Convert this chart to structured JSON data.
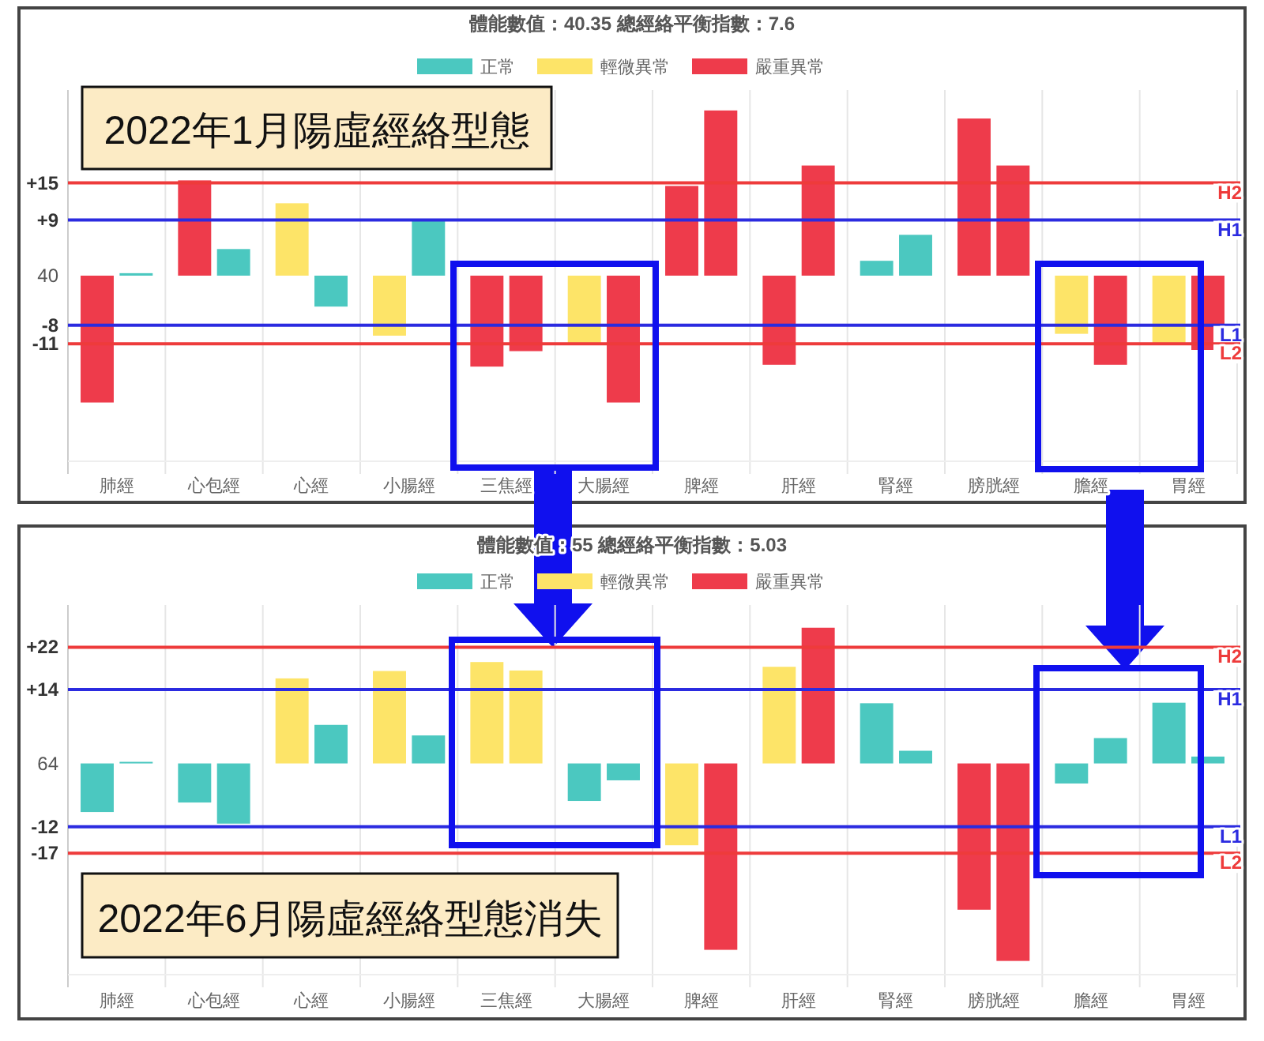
{
  "chart_data": [
    {
      "type": "bar",
      "title": "體能數值：40.35 總經絡平衡指數：7.6",
      "categories": [
        "肺經",
        "心包經",
        "心經",
        "小腸經",
        "三焦經",
        "大腸經",
        "脾經",
        "肝經",
        "腎經",
        "膀胱經",
        "膽經",
        "胃經"
      ],
      "series": [
        {
          "name": "正常",
          "color": "#4bc8c0",
          "values": [
            null,
            null,
            null,
            null,
            null,
            null,
            null,
            null,
            2.4,
            null,
            null,
            null
          ]
        },
        {
          "name": "輕微異常",
          "color": "#fde468",
          "values": [
            null,
            null,
            11.7,
            -9.7,
            null,
            -10.9,
            null,
            null,
            null,
            null,
            -9.4,
            -10.9
          ]
        },
        {
          "name": "嚴重異常",
          "color": "#ee3b4b",
          "values": [
            -20.5,
            15.4,
            null,
            null,
            -14.7,
            null,
            14.5,
            -14.4,
            null,
            25.4,
            null,
            null
          ]
        },
        {
          "color": "#4bc8c0",
          "values": [
            0.4,
            4.3,
            -5.0,
            9.1,
            null,
            null,
            null,
            null,
            6.6,
            null,
            null,
            null
          ]
        },
        {
          "color": "#ee3b4b",
          "values": [
            null,
            null,
            null,
            null,
            -12.2,
            -20.5,
            26.7,
            17.8,
            null,
            17.8,
            -14.4,
            -12.0
          ]
        }
      ],
      "ylim": [
        -30,
        30
      ],
      "yticks": [
        {
          "value": 15,
          "label": "+15"
        },
        {
          "value": 9,
          "label": "+9"
        },
        -8,
        -11
      ],
      "ref_lines": [
        {
          "axis": "y",
          "value": 15,
          "label": "H2",
          "color": "#ee3b3b"
        },
        {
          "axis": "y",
          "value": 9,
          "label": "H1",
          "color": "#2b2be0"
        },
        {
          "axis": "y",
          "value": -8,
          "label": "L1",
          "color": "#2b2be0"
        },
        {
          "axis": "y",
          "value": -11,
          "label": "L2",
          "color": "#ee3b3b"
        }
      ],
      "annotations": [
        "2022年1月陽虛經絡型態",
        "40"
      ],
      "grid": true,
      "legend": "top"
    },
    {
      "type": "bar",
      "title": "體能數值：55 總經絡平衡指數：5.03",
      "categories": [
        "肺經",
        "心包經",
        "心經",
        "小腸經",
        "三焦經",
        "大腸經",
        "脾經",
        "肝經",
        "腎經",
        "膀胱經",
        "膽經",
        "胃經"
      ],
      "series": [
        {
          "name": "正常",
          "color": "#4bc8c0",
          "values": [
            -9.2,
            -7.4,
            null,
            null,
            null,
            -7.1,
            null,
            null,
            11.4,
            null,
            -3.8,
            11.5
          ]
        },
        {
          "name": "輕微異常",
          "color": "#fde468",
          "values": [
            null,
            null,
            16.1,
            17.5,
            19.2,
            null,
            -15.5,
            18.3,
            null,
            null,
            null,
            null
          ]
        },
        {
          "name": "嚴重異常",
          "color": "#ee3b4b",
          "values": [
            null,
            null,
            null,
            null,
            null,
            null,
            null,
            null,
            null,
            -27.7,
            null,
            null
          ]
        },
        {
          "color": "#4bc8c0",
          "values": [
            0.3,
            -11.4,
            7.3,
            5.3,
            null,
            -3.2,
            null,
            null,
            2.4,
            null,
            4.8,
            1.3
          ]
        },
        {
          "color": "#fde468",
          "values": [
            null,
            null,
            null,
            null,
            17.6,
            null,
            null,
            null,
            null,
            null,
            null,
            null
          ]
        },
        {
          "color": "#ee3b4b",
          "values": [
            null,
            null,
            null,
            null,
            null,
            null,
            -35.3,
            25.7,
            null,
            -37.4,
            null,
            null
          ]
        }
      ],
      "ylim": [
        -40,
        30
      ],
      "yticks": [
        {
          "value": 22,
          "label": "+22"
        },
        {
          "value": 14,
          "label": "+14"
        },
        -12,
        -17
      ],
      "ref_lines": [
        {
          "axis": "y",
          "value": 22,
          "label": "H2",
          "color": "#ee3b3b"
        },
        {
          "axis": "y",
          "value": 14,
          "label": "H1",
          "color": "#2b2be0"
        },
        {
          "axis": "y",
          "value": -12,
          "label": "L1",
          "color": "#2b2be0"
        },
        {
          "axis": "y",
          "value": -17,
          "label": "L2",
          "color": "#ee3b3b"
        }
      ],
      "annotations": [
        "2022年6月陽虛經絡型態消失",
        "64"
      ],
      "grid": true,
      "legend": "top"
    }
  ]
}
